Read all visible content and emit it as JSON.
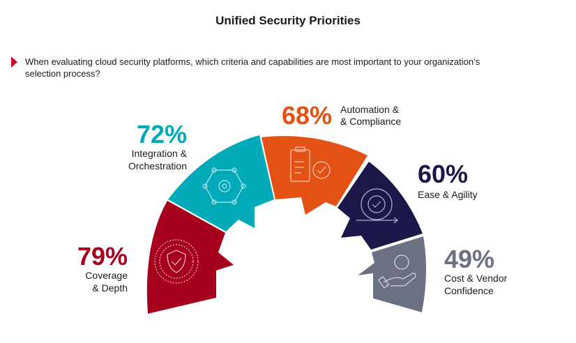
{
  "title": "Unified Security Priorities",
  "question": "When evaluating cloud security platforms, which criteria and capabilities are most important to your organization’s selection process?",
  "chart_data": {
    "type": "bar",
    "title": "Unified Security Priorities",
    "categories": [
      "Coverage & Depth",
      "Integration & Orchestration",
      "Automation & & Compliance",
      "Ease & Agility",
      "Cost & Vendor Confidence"
    ],
    "values": [
      79,
      72,
      68,
      60,
      49
    ],
    "unit": "%",
    "items": [
      {
        "pct": "79%",
        "label1": "Coverage",
        "label2": "& Depth",
        "color": "#a6001e",
        "icon": "shield-check-icon"
      },
      {
        "pct": "72%",
        "label1": "Integration &",
        "label2": "Orchestration",
        "color": "#00aab9",
        "icon": "gear-network-icon"
      },
      {
        "pct": "68%",
        "label1": "Automation &",
        "label2": "& Compliance",
        "color": "#e35214",
        "icon": "clipboard-check-icon"
      },
      {
        "pct": "60%",
        "label1": "Ease & Agility",
        "label2": "",
        "color": "#1b1849",
        "icon": "gear-cycle-icon"
      },
      {
        "pct": "49%",
        "label1": "Cost & Vendor",
        "label2": "Confidence",
        "color": "#6b7083",
        "icon": "hand-coin-icon"
      }
    ]
  }
}
